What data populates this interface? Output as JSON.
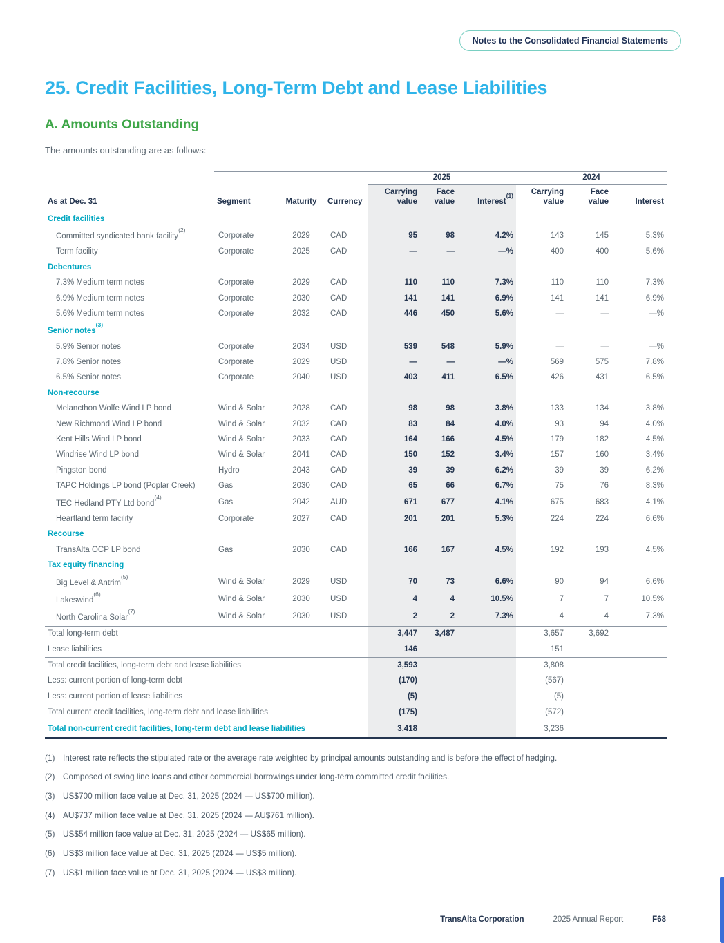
{
  "page": {
    "badge": "Notes to the Consolidated Financial Statements",
    "title": "25. Credit Facilities, Long-Term Debt and Lease Liabilities",
    "section_heading": "A. Amounts Outstanding",
    "intro": "The amounts outstanding are as follows:"
  },
  "table": {
    "group_headers": [
      "2025",
      "2024"
    ],
    "columns": [
      {
        "label": "As at Dec. 31"
      },
      {
        "label": "Segment"
      },
      {
        "label": "Maturity"
      },
      {
        "label": "Currency"
      },
      {
        "label": "Carrying value"
      },
      {
        "label": "Face value"
      },
      {
        "label": "Interest",
        "sup": "(1)"
      },
      {
        "label": "Carrying value"
      },
      {
        "label": "Face value"
      },
      {
        "label": "Interest"
      }
    ],
    "rows": [
      {
        "type": "section",
        "label": "Credit facilities"
      },
      {
        "type": "item",
        "label": "Committed syndicated bank facility",
        "sup": "(2)",
        "segment": "Corporate",
        "maturity": "2029",
        "currency": "CAD",
        "y25": [
          "95",
          "98",
          "4.2%"
        ],
        "y24": [
          "143",
          "145",
          "5.3%"
        ]
      },
      {
        "type": "item",
        "label": "Term facility",
        "segment": "Corporate",
        "maturity": "2025",
        "currency": "CAD",
        "y25": [
          "—",
          "—",
          "—%"
        ],
        "y24": [
          "400",
          "400",
          "5.6%"
        ]
      },
      {
        "type": "section",
        "label": "Debentures"
      },
      {
        "type": "item",
        "label": "7.3% Medium term notes",
        "segment": "Corporate",
        "maturity": "2029",
        "currency": "CAD",
        "y25": [
          "110",
          "110",
          "7.3%"
        ],
        "y24": [
          "110",
          "110",
          "7.3%"
        ]
      },
      {
        "type": "item",
        "label": "6.9% Medium term notes",
        "segment": "Corporate",
        "maturity": "2030",
        "currency": "CAD",
        "y25": [
          "141",
          "141",
          "6.9%"
        ],
        "y24": [
          "141",
          "141",
          "6.9%"
        ]
      },
      {
        "type": "item",
        "label": "5.6% Medium term notes",
        "segment": "Corporate",
        "maturity": "2032",
        "currency": "CAD",
        "y25": [
          "446",
          "450",
          "5.6%"
        ],
        "y24": [
          "—",
          "—",
          "—%"
        ]
      },
      {
        "type": "section",
        "label": "Senior notes",
        "sup": "(3)"
      },
      {
        "type": "item",
        "label": "5.9% Senior notes",
        "segment": "Corporate",
        "maturity": "2034",
        "currency": "USD",
        "y25": [
          "539",
          "548",
          "5.9%"
        ],
        "y24": [
          "—",
          "—",
          "—%"
        ]
      },
      {
        "type": "item",
        "label": "7.8% Senior notes",
        "segment": "Corporate",
        "maturity": "2029",
        "currency": "USD",
        "y25": [
          "—",
          "—",
          "—%"
        ],
        "y24": [
          "569",
          "575",
          "7.8%"
        ]
      },
      {
        "type": "item",
        "label": "6.5% Senior notes",
        "segment": "Corporate",
        "maturity": "2040",
        "currency": "USD",
        "y25": [
          "403",
          "411",
          "6.5%"
        ],
        "y24": [
          "426",
          "431",
          "6.5%"
        ]
      },
      {
        "type": "section",
        "label": "Non-recourse"
      },
      {
        "type": "item",
        "label": "Melancthon Wolfe Wind LP bond",
        "segment": "Wind & Solar",
        "maturity": "2028",
        "currency": "CAD",
        "y25": [
          "98",
          "98",
          "3.8%"
        ],
        "y24": [
          "133",
          "134",
          "3.8%"
        ]
      },
      {
        "type": "item",
        "label": "New Richmond Wind LP bond",
        "segment": "Wind & Solar",
        "maturity": "2032",
        "currency": "CAD",
        "y25": [
          "83",
          "84",
          "4.0%"
        ],
        "y24": [
          "93",
          "94",
          "4.0%"
        ]
      },
      {
        "type": "item",
        "label": "Kent Hills Wind LP bond",
        "segment": "Wind & Solar",
        "maturity": "2033",
        "currency": "CAD",
        "y25": [
          "164",
          "166",
          "4.5%"
        ],
        "y24": [
          "179",
          "182",
          "4.5%"
        ]
      },
      {
        "type": "item",
        "label": "Windrise Wind LP bond",
        "segment": "Wind & Solar",
        "maturity": "2041",
        "currency": "CAD",
        "y25": [
          "150",
          "152",
          "3.4%"
        ],
        "y24": [
          "157",
          "160",
          "3.4%"
        ]
      },
      {
        "type": "item",
        "label": "Pingston bond",
        "segment": "Hydro",
        "maturity": "2043",
        "currency": "CAD",
        "y25": [
          "39",
          "39",
          "6.2%"
        ],
        "y24": [
          "39",
          "39",
          "6.2%"
        ]
      },
      {
        "type": "item",
        "label": "TAPC Holdings LP bond (Poplar Creek)",
        "segment": "Gas",
        "maturity": "2030",
        "currency": "CAD",
        "y25": [
          "65",
          "66",
          "6.7%"
        ],
        "y24": [
          "75",
          "76",
          "8.3%"
        ]
      },
      {
        "type": "item",
        "label": "TEC Hedland PTY Ltd bond",
        "sup": "(4)",
        "segment": "Gas",
        "maturity": "2042",
        "currency": "AUD",
        "y25": [
          "671",
          "677",
          "4.1%"
        ],
        "y24": [
          "675",
          "683",
          "4.1%"
        ]
      },
      {
        "type": "item",
        "label": "Heartland term facility",
        "segment": "Corporate",
        "maturity": "2027",
        "currency": "CAD",
        "y25": [
          "201",
          "201",
          "5.3%"
        ],
        "y24": [
          "224",
          "224",
          "6.6%"
        ]
      },
      {
        "type": "section",
        "label": "Recourse"
      },
      {
        "type": "item",
        "label": "TransAlta OCP LP bond",
        "segment": "Gas",
        "maturity": "2030",
        "currency": "CAD",
        "y25": [
          "166",
          "167",
          "4.5%"
        ],
        "y24": [
          "192",
          "193",
          "4.5%"
        ]
      },
      {
        "type": "section",
        "label": "Tax equity financing"
      },
      {
        "type": "item",
        "label": "Big Level & Antrim",
        "sup": "(5)",
        "segment": "Wind & Solar",
        "maturity": "2029",
        "currency": "USD",
        "y25": [
          "70",
          "73",
          "6.6%"
        ],
        "y24": [
          "90",
          "94",
          "6.6%"
        ]
      },
      {
        "type": "item",
        "label": "Lakeswind",
        "sup": "(6)",
        "segment": "Wind & Solar",
        "maturity": "2030",
        "currency": "USD",
        "y25": [
          "4",
          "4",
          "10.5%"
        ],
        "y24": [
          "7",
          "7",
          "10.5%"
        ]
      },
      {
        "type": "item",
        "label": "North Carolina Solar",
        "sup": "(7)",
        "segment": "Wind & Solar",
        "maturity": "2030",
        "currency": "USD",
        "y25": [
          "2",
          "2",
          "7.3%"
        ],
        "y24": [
          "4",
          "4",
          "7.3%"
        ]
      },
      {
        "type": "total",
        "label": "Total long-term debt",
        "rule_top": true,
        "y25": [
          "3,447",
          "3,487",
          ""
        ],
        "y24": [
          "3,657",
          "3,692",
          ""
        ]
      },
      {
        "type": "total",
        "label": "Lease liabilities",
        "rule_bottom": true,
        "y25": [
          "146",
          "",
          ""
        ],
        "y24": [
          "151",
          "",
          ""
        ]
      },
      {
        "type": "total",
        "label": "Total credit facilities, long-term debt and lease liabilities",
        "y25": [
          "3,593",
          "",
          ""
        ],
        "y24": [
          "3,808",
          "",
          ""
        ]
      },
      {
        "type": "total",
        "label": "Less: current portion of long-term debt",
        "y25": [
          "(170)",
          "",
          ""
        ],
        "y24": [
          "(567)",
          "",
          ""
        ]
      },
      {
        "type": "total",
        "label": "Less: current portion of lease liabilities",
        "rule_bottom": true,
        "y25": [
          "(5)",
          "",
          ""
        ],
        "y24": [
          "(5)",
          "",
          ""
        ]
      },
      {
        "type": "total",
        "label": "Total current credit facilities, long-term debt and lease liabilities",
        "rule_bottom": true,
        "y25": [
          "(175)",
          "",
          ""
        ],
        "y24": [
          "(572)",
          "",
          ""
        ]
      },
      {
        "type": "total",
        "label": "Total non-current credit facilities, long-term debt and lease liabilities",
        "emphasis": true,
        "rule_dark": true,
        "y25": [
          "3,418",
          "",
          ""
        ],
        "y24": [
          "3,236",
          "",
          ""
        ]
      }
    ]
  },
  "footnotes": [
    {
      "marker": "(1)",
      "text": "Interest rate reflects the stipulated rate or the average rate weighted by principal amounts outstanding and is before the effect of hedging."
    },
    {
      "marker": "(2)",
      "text": "Composed of swing line loans and other commercial borrowings under long-term committed credit facilities."
    },
    {
      "marker": "(3)",
      "text": "US$700 million face value at Dec. 31, 2025 (2024 — US$700 million)."
    },
    {
      "marker": "(4)",
      "text": "AU$737 million face value at Dec. 31, 2025 (2024 — AU$761 million)."
    },
    {
      "marker": "(5)",
      "text": "US$54 million face value at Dec. 31, 2025 (2024 — US$65 million)."
    },
    {
      "marker": "(6)",
      "text": "US$3 million face value at Dec. 31, 2025 (2024 — US$5 million)."
    },
    {
      "marker": "(7)",
      "text": "US$1 million face value at Dec. 31, 2025 (2024 — US$3 million)."
    }
  ],
  "footer": {
    "company": "TransAlta Corporation",
    "report": "2025 Annual Report",
    "page_number": "F68"
  },
  "colors": {
    "title_blue": "#2FB4E9",
    "heading_green": "#3EA648",
    "section_teal": "#00A6C0",
    "header_navy": "#24354F",
    "body_gray": "#5B6770",
    "shade_gray": "#ECEDEE",
    "badge_border_teal": "#79CFC2",
    "edge_bar_blue": "#3A6FD8"
  }
}
